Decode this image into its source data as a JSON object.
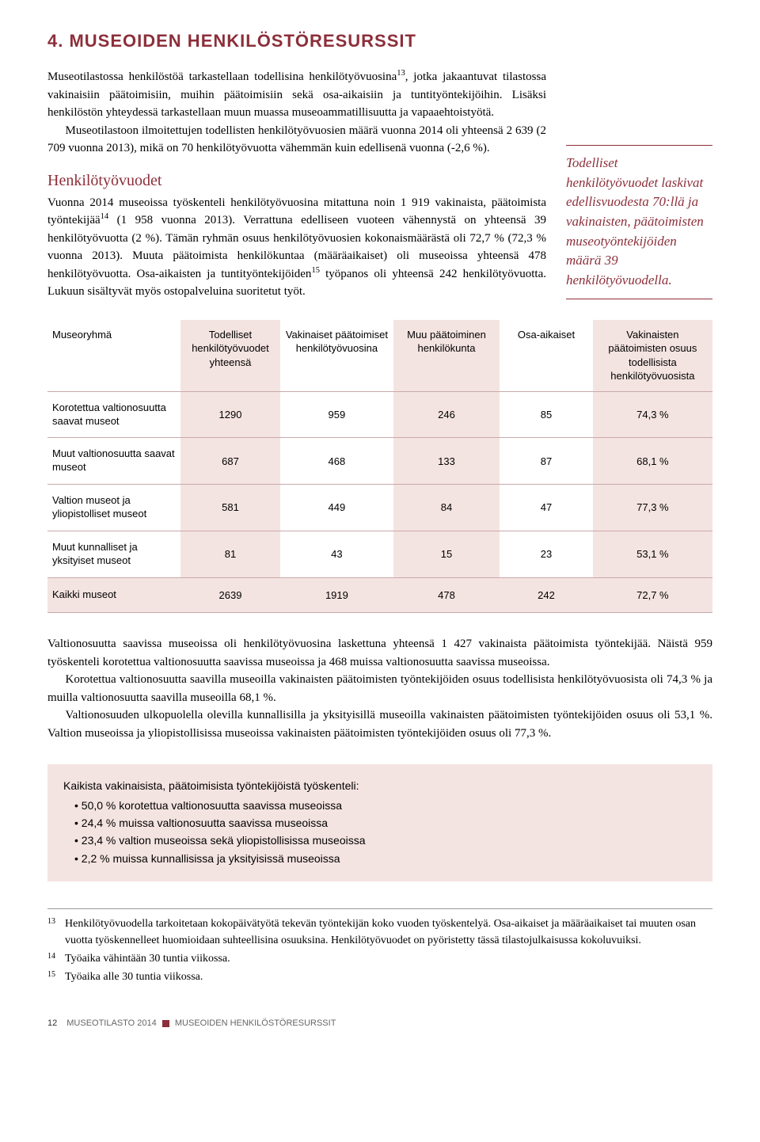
{
  "heading": "4. MUSEOIDEN HENKILÖSTÖRESURSSIT",
  "para1": "Museotilastossa henkilöstöä tarkastellaan todellisina henkilötyövuosina",
  "sup13": "13",
  "para1b": ", jotka jakaantuvat tilastossa vakinaisiin päätoimisiin, muihin päätoimisiin sekä osa-aikaisiin ja tuntityöntekijöihin. Lisäksi henkilöstön yhteydessä tarkastellaan muun muassa museoammatillisuutta ja vapaaehtoistyötä.",
  "para2": "Museotilastoon ilmoitettujen todellisten henkilötyövuosien määrä vuonna 2014 oli yhteensä 2 639 (2 709 vuonna 2013), mikä on 70 henkilötyövuotta vähemmän kuin edellisenä vuonna (-2,6 %).",
  "subheading": "Henkilötyövuodet",
  "para3a": "Vuonna 2014 museoissa työskenteli henkilötyövuosina mitattuna noin 1 919 vakinaista, päätoimista työntekijää",
  "sup14": "14",
  "para3b": " (1 958 vuonna 2013). Verrattuna edelliseen vuoteen vähennystä on yhteensä 39 henkilötyövuotta (2 %). Tämän ryhmän osuus henkilötyövuosien kokonaismäärästä oli 72,7 % (72,3 % vuonna 2013). Muuta päätoimista henkilökuntaa (määräaikaiset) oli museoissa yhteensä 478 henkilötyövuotta. Osa-aikaisten ja tuntityöntekijöiden",
  "sup15": "15",
  "para3c": " työpanos oli yhteensä 242 henkilötyövuotta. Lukuun sisältyvät myös ostopalveluina suoritetut työt.",
  "sidenote": "Todelliset henkilötyövuodet laskivat edellisvuodesta 70:llä ja vakinaisten, päätoimisten museotyöntekijöiden määrä 39 henkilötyövuodella.",
  "table": {
    "col_widths": [
      "20%",
      "15%",
      "17%",
      "16%",
      "14%",
      "18%"
    ],
    "headers": [
      "Museoryhmä",
      "Todelliset henkilötyövuodet yhteensä",
      "Vakinaiset päätoimiset henkilötyövuosina",
      "Muu päätoiminen henkilökunta",
      "Osa-aikaiset",
      "Vakinaisten päätoimisten osuus todellisista henkilötyövuosista"
    ],
    "rows": [
      [
        "Korotettua valtionosuutta saavat museot",
        "1290",
        "959",
        "246",
        "85",
        "74,3 %"
      ],
      [
        "Muut valtionosuutta saavat museot",
        "687",
        "468",
        "133",
        "87",
        "68,1 %"
      ],
      [
        "Valtion museot ja yliopistolliset museot",
        "581",
        "449",
        "84",
        "47",
        "77,3 %"
      ],
      [
        "Muut kunnalliset ja yksityiset museot",
        "81",
        "43",
        "15",
        "23",
        "53,1 %"
      ],
      [
        "Kaikki museot",
        "2639",
        "1919",
        "478",
        "242",
        "72,7 %"
      ]
    ]
  },
  "para4": "Valtionosuutta saavissa museoissa oli henkilötyövuosina laskettuna yhteensä 1 427 vakinaista päätoimista työntekijää. Näistä 959 työskenteli korotettua valtionosuutta saavissa museoissa ja 468 muissa valtionosuutta saavissa museoissa.",
  "para5": "Korotettua valtionosuutta saavilla museoilla vakinaisten päätoimisten työntekijöiden osuus todellisista henkilötyövuosista oli 74,3 % ja muilla valtionosuutta saavilla museoilla 68,1 %.",
  "para6": "Valtionosuuden ulkopuolella olevilla kunnallisilla ja yksityisillä museoilla vakinaisten päätoimisten työntekijöiden osuus oli 53,1 %. Valtion museoissa ja yliopistollisissa museoissa vakinaisten päätoimisten työntekijöiden osuus oli 77,3 %.",
  "box": {
    "title": "Kaikista vakinaisista, päätoimisista työntekijöistä työskenteli:",
    "items": [
      "50,0 % korotettua valtionosuutta saavissa museoissa",
      "24,4 % muissa valtionosuutta saavissa museoissa",
      "23,4 % valtion museoissa sekä yliopistollisissa museoissa",
      "2,2 % muissa kunnallisissa ja yksityisissä museoissa"
    ]
  },
  "footnotes": {
    "n13": "13",
    "t13": "Henkilötyövuodella tarkoitetaan kokopäivätyötä tekevän työntekijän koko vuoden työskentelyä. Osa-aikaiset ja määräaikaiset tai muuten osan vuotta työskennelleet huomioidaan suhteellisina osuuksina. Henkilötyövuodet on pyöristetty tässä tilastojulkaisussa kokoluvuiksi.",
    "n14": "14",
    "t14": "Työaika vähintään 30 tuntia viikossa.",
    "n15": "15",
    "t15": "Työaika alle 30 tuntia viikossa."
  },
  "footer": {
    "pagenum": "12",
    "left": "MUSEOTILASTO 2014",
    "right": "MUSEOIDEN HENKILÖSTÖRESURSSIT"
  }
}
